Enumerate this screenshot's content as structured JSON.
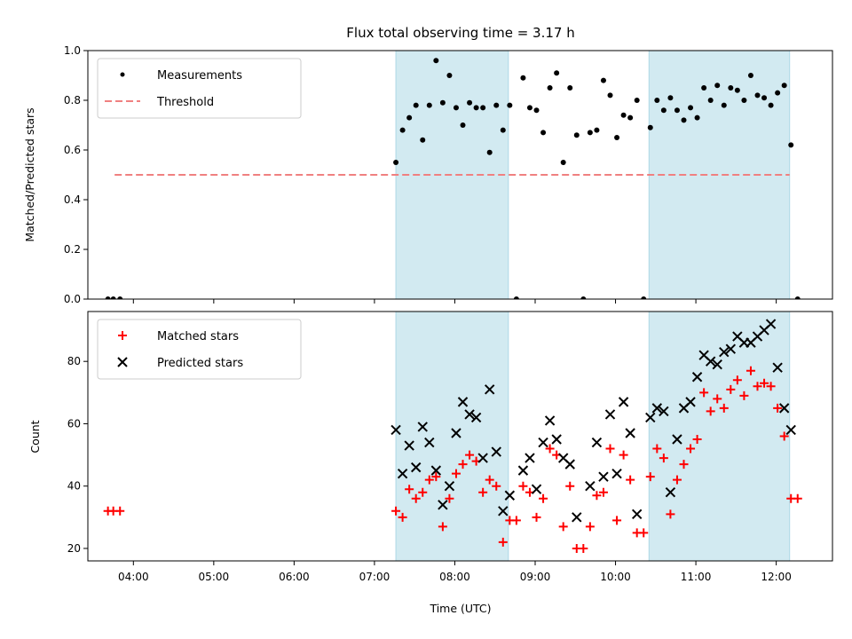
{
  "chart_data": [
    {
      "type": "scatter",
      "title": "Flux total observing time = 3.17 h",
      "ylabel": "Matched/Predicted stars",
      "xlabel": "",
      "xlim": [
        "03:26",
        "12:42"
      ],
      "ylim": [
        0.0,
        1.0
      ],
      "yticks": [
        "0.0",
        "0.2",
        "0.4",
        "0.6",
        "0.8",
        "1.0"
      ],
      "xticks": [
        "04:00",
        "05:00",
        "06:00",
        "07:00",
        "08:00",
        "09:00",
        "10:00",
        "11:00",
        "12:00"
      ],
      "grid": false,
      "legend": "top-left",
      "shaded_intervals": [
        [
          "07:16",
          "08:40"
        ],
        [
          "10:25",
          "12:10"
        ]
      ],
      "shade_color": "#add8e6",
      "series": [
        {
          "name": "Measurements",
          "marker": "dot",
          "color": "#000000",
          "points": [
            [
              "03:41",
              0.0
            ],
            [
              "03:45",
              0.0
            ],
            [
              "03:50",
              0.0
            ],
            [
              "07:16",
              0.55
            ],
            [
              "07:21",
              0.68
            ],
            [
              "07:26",
              0.73
            ],
            [
              "07:31",
              0.78
            ],
            [
              "07:36",
              0.64
            ],
            [
              "07:41",
              0.78
            ],
            [
              "07:46",
              0.96
            ],
            [
              "07:51",
              0.79
            ],
            [
              "07:56",
              0.9
            ],
            [
              "08:01",
              0.77
            ],
            [
              "08:06",
              0.7
            ],
            [
              "08:11",
              0.79
            ],
            [
              "08:16",
              0.77
            ],
            [
              "08:21",
              0.77
            ],
            [
              "08:26",
              0.59
            ],
            [
              "08:31",
              0.78
            ],
            [
              "08:36",
              0.68
            ],
            [
              "08:41",
              0.78
            ],
            [
              "08:46",
              0.0
            ],
            [
              "08:51",
              0.89
            ],
            [
              "08:56",
              0.77
            ],
            [
              "09:01",
              0.76
            ],
            [
              "09:06",
              0.67
            ],
            [
              "09:11",
              0.85
            ],
            [
              "09:16",
              0.91
            ],
            [
              "09:21",
              0.55
            ],
            [
              "09:26",
              0.85
            ],
            [
              "09:31",
              0.66
            ],
            [
              "09:36",
              0.0
            ],
            [
              "09:41",
              0.67
            ],
            [
              "09:46",
              0.68
            ],
            [
              "09:51",
              0.88
            ],
            [
              "09:56",
              0.82
            ],
            [
              "10:01",
              0.65
            ],
            [
              "10:06",
              0.74
            ],
            [
              "10:11",
              0.73
            ],
            [
              "10:16",
              0.8
            ],
            [
              "10:21",
              0.0
            ],
            [
              "10:26",
              0.69
            ],
            [
              "10:31",
              0.8
            ],
            [
              "10:36",
              0.76
            ],
            [
              "10:41",
              0.81
            ],
            [
              "10:46",
              0.76
            ],
            [
              "10:51",
              0.72
            ],
            [
              "10:56",
              0.77
            ],
            [
              "11:01",
              0.73
            ],
            [
              "11:06",
              0.85
            ],
            [
              "11:11",
              0.8
            ],
            [
              "11:16",
              0.86
            ],
            [
              "11:21",
              0.78
            ],
            [
              "11:26",
              0.85
            ],
            [
              "11:31",
              0.84
            ],
            [
              "11:36",
              0.8
            ],
            [
              "11:41",
              0.9
            ],
            [
              "11:46",
              0.82
            ],
            [
              "11:51",
              0.81
            ],
            [
              "11:56",
              0.78
            ],
            [
              "12:01",
              0.83
            ],
            [
              "12:06",
              0.86
            ],
            [
              "12:11",
              0.62
            ],
            [
              "12:16",
              0.0
            ]
          ]
        },
        {
          "name": "Threshold",
          "marker": "dashed-line",
          "color": "#f08080",
          "points": [
            [
              "03:46",
              0.5
            ],
            [
              "12:10",
              0.5
            ]
          ]
        }
      ]
    },
    {
      "type": "scatter",
      "title": "",
      "xlabel": "Time (UTC)",
      "ylabel": "Count",
      "xlim": [
        "03:26",
        "12:42"
      ],
      "ylim": [
        16,
        96
      ],
      "yticks": [
        "20",
        "40",
        "60",
        "80"
      ],
      "xticks": [
        "04:00",
        "05:00",
        "06:00",
        "07:00",
        "08:00",
        "09:00",
        "10:00",
        "11:00",
        "12:00"
      ],
      "grid": false,
      "legend": "top-left",
      "shaded_intervals": [
        [
          "07:16",
          "08:40"
        ],
        [
          "10:25",
          "12:10"
        ]
      ],
      "shade_color": "#add8e6",
      "series": [
        {
          "name": "Matched stars",
          "marker": "plus",
          "color": "#ff0000",
          "points": [
            [
              "03:41",
              32
            ],
            [
              "03:45",
              32
            ],
            [
              "03:50",
              32
            ],
            [
              "07:16",
              32
            ],
            [
              "07:21",
              30
            ],
            [
              "07:26",
              39
            ],
            [
              "07:31",
              36
            ],
            [
              "07:36",
              38
            ],
            [
              "07:41",
              42
            ],
            [
              "07:46",
              43
            ],
            [
              "07:51",
              27
            ],
            [
              "07:56",
              36
            ],
            [
              "08:01",
              44
            ],
            [
              "08:06",
              47
            ],
            [
              "08:11",
              50
            ],
            [
              "08:16",
              48
            ],
            [
              "08:21",
              38
            ],
            [
              "08:26",
              42
            ],
            [
              "08:31",
              40
            ],
            [
              "08:36",
              22
            ],
            [
              "08:41",
              29
            ],
            [
              "08:46",
              29
            ],
            [
              "08:51",
              40
            ],
            [
              "08:56",
              38
            ],
            [
              "09:01",
              30
            ],
            [
              "09:06",
              36
            ],
            [
              "09:11",
              52
            ],
            [
              "09:16",
              50
            ],
            [
              "09:21",
              27
            ],
            [
              "09:26",
              40
            ],
            [
              "09:31",
              20
            ],
            [
              "09:36",
              20
            ],
            [
              "09:41",
              27
            ],
            [
              "09:46",
              37
            ],
            [
              "09:51",
              38
            ],
            [
              "09:56",
              52
            ],
            [
              "10:01",
              29
            ],
            [
              "10:06",
              50
            ],
            [
              "10:11",
              42
            ],
            [
              "10:16",
              25
            ],
            [
              "10:21",
              25
            ],
            [
              "10:26",
              43
            ],
            [
              "10:31",
              52
            ],
            [
              "10:36",
              49
            ],
            [
              "10:41",
              31
            ],
            [
              "10:46",
              42
            ],
            [
              "10:51",
              47
            ],
            [
              "10:56",
              52
            ],
            [
              "11:01",
              55
            ],
            [
              "11:06",
              70
            ],
            [
              "11:11",
              64
            ],
            [
              "11:16",
              68
            ],
            [
              "11:21",
              65
            ],
            [
              "11:26",
              71
            ],
            [
              "11:31",
              74
            ],
            [
              "11:36",
              69
            ],
            [
              "11:41",
              77
            ],
            [
              "11:46",
              72
            ],
            [
              "11:51",
              73
            ],
            [
              "11:56",
              72
            ],
            [
              "12:01",
              65
            ],
            [
              "12:06",
              56
            ],
            [
              "12:11",
              36
            ],
            [
              "12:16",
              36
            ]
          ]
        },
        {
          "name": "Predicted stars",
          "marker": "x",
          "color": "#000000",
          "points": [
            [
              "07:16",
              58
            ],
            [
              "07:21",
              44
            ],
            [
              "07:26",
              53
            ],
            [
              "07:31",
              46
            ],
            [
              "07:36",
              59
            ],
            [
              "07:41",
              54
            ],
            [
              "07:46",
              45
            ],
            [
              "07:51",
              34
            ],
            [
              "07:56",
              40
            ],
            [
              "08:01",
              57
            ],
            [
              "08:06",
              67
            ],
            [
              "08:11",
              63
            ],
            [
              "08:16",
              62
            ],
            [
              "08:21",
              49
            ],
            [
              "08:26",
              71
            ],
            [
              "08:31",
              51
            ],
            [
              "08:36",
              32
            ],
            [
              "08:41",
              37
            ],
            [
              "08:51",
              45
            ],
            [
              "08:56",
              49
            ],
            [
              "09:01",
              39
            ],
            [
              "09:06",
              54
            ],
            [
              "09:11",
              61
            ],
            [
              "09:16",
              55
            ],
            [
              "09:21",
              49
            ],
            [
              "09:26",
              47
            ],
            [
              "09:31",
              30
            ],
            [
              "09:41",
              40
            ],
            [
              "09:46",
              54
            ],
            [
              "09:51",
              43
            ],
            [
              "09:56",
              63
            ],
            [
              "10:01",
              44
            ],
            [
              "10:06",
              67
            ],
            [
              "10:11",
              57
            ],
            [
              "10:16",
              31
            ],
            [
              "10:26",
              62
            ],
            [
              "10:31",
              65
            ],
            [
              "10:36",
              64
            ],
            [
              "10:41",
              38
            ],
            [
              "10:46",
              55
            ],
            [
              "10:51",
              65
            ],
            [
              "10:56",
              67
            ],
            [
              "11:01",
              75
            ],
            [
              "11:06",
              82
            ],
            [
              "11:11",
              80
            ],
            [
              "11:16",
              79
            ],
            [
              "11:21",
              83
            ],
            [
              "11:26",
              84
            ],
            [
              "11:31",
              88
            ],
            [
              "11:36",
              86
            ],
            [
              "11:41",
              86
            ],
            [
              "11:46",
              88
            ],
            [
              "11:51",
              90
            ],
            [
              "11:56",
              92
            ],
            [
              "12:01",
              78
            ],
            [
              "12:06",
              65
            ],
            [
              "12:11",
              58
            ]
          ]
        }
      ]
    }
  ]
}
